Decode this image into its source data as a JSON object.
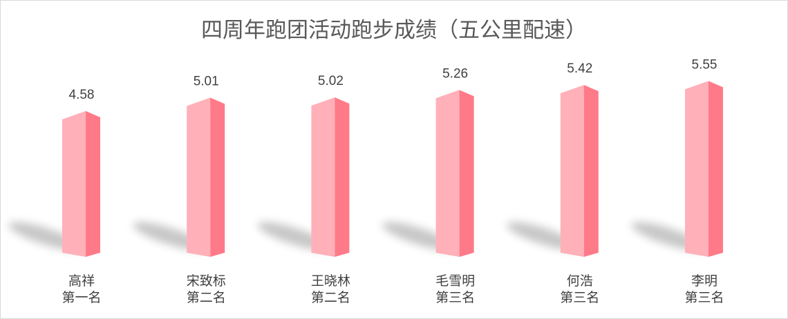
{
  "chart_data": {
    "type": "bar",
    "style": "3d-column",
    "title": "四周年跑团活动跑步成绩（五公里配速）",
    "categories": [
      {
        "name": "高祥",
        "rank": "第一名"
      },
      {
        "name": "宋致标",
        "rank": "第二名"
      },
      {
        "name": "王晓林",
        "rank": "第二名"
      },
      {
        "name": "毛雪明",
        "rank": "第三名"
      },
      {
        "name": "何浩",
        "rank": "第三名"
      },
      {
        "name": "李明",
        "rank": "第三名"
      }
    ],
    "values": [
      4.58,
      5.01,
      5.02,
      5.26,
      5.42,
      5.55
    ],
    "value_labels": [
      "4.58",
      "5.01",
      "5.02",
      "5.26",
      "5.42",
      "5.55"
    ],
    "ylim": [
      0,
      8
    ],
    "grid": false,
    "legend": "none",
    "colors": {
      "front": "#ffb0b8",
      "side": "#ff7a88",
      "top": "#ffc4ca",
      "label": "#404040",
      "title": "#595959"
    }
  }
}
